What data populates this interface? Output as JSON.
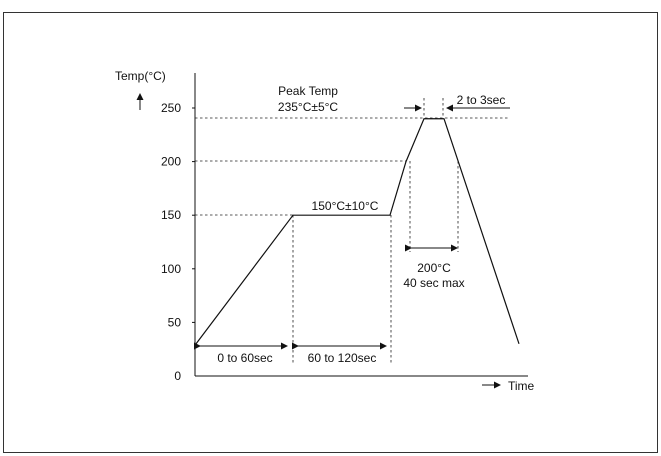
{
  "chart_data": {
    "type": "line",
    "ylabel": "Temp(°C)",
    "xlabel": "Time",
    "ylim": [
      0,
      250
    ],
    "yticks": [
      0,
      50,
      100,
      150,
      200,
      250
    ],
    "grid": false,
    "series": [
      {
        "x": [
          0,
          1,
          2,
          3,
          4,
          5,
          6
        ],
        "y": [
          30,
          150,
          150,
          200,
          240,
          240,
          30
        ]
      }
    ],
    "annotations": {
      "peak_title": "Peak Temp",
      "peak_value": "235°C±5°C",
      "peak_duration": "2 to 3sec",
      "soak_temp": "150°C±10°C",
      "preheat_time": "0 to 60sec",
      "soak_time": "60 to 120sec",
      "reflow_temp": "200°C",
      "reflow_time": "40 sec max"
    }
  }
}
